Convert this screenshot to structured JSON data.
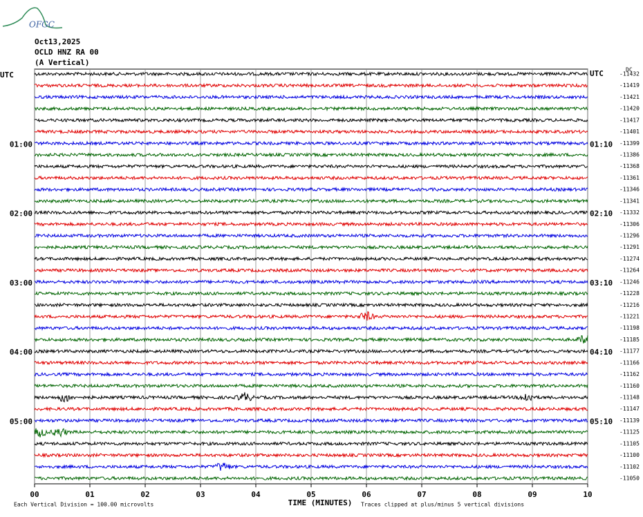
{
  "logo": "OFGC",
  "header": [
    "Oct13,2025",
    "OCLD HNZ RA 00",
    "(A Vertical)"
  ],
  "chart_data": {
    "type": "helicorder",
    "dc_label": "DC",
    "colors": [
      "#000000",
      "#e00000",
      "#0000e0",
      "#006400"
    ],
    "row_labels_left": [
      "UTC",
      null,
      null,
      null,
      null,
      null,
      "01:00",
      null,
      null,
      null,
      null,
      null,
      "02:00",
      null,
      null,
      null,
      null,
      null,
      "03:00",
      null,
      null,
      null,
      null,
      null,
      "04:00",
      null,
      null,
      null,
      null,
      null,
      "05:00",
      null,
      null,
      null,
      null,
      null
    ],
    "row_labels_right": [
      "UTC",
      null,
      null,
      null,
      null,
      null,
      "01:10",
      null,
      null,
      null,
      null,
      null,
      "02:10",
      null,
      null,
      null,
      null,
      null,
      "03:10",
      null,
      null,
      null,
      null,
      null,
      "04:10",
      null,
      null,
      null,
      null,
      null,
      "05:10",
      null,
      null,
      null,
      null,
      null
    ],
    "offsets": [
      -11432,
      -11419,
      -11421,
      -11420,
      -11417,
      -11401,
      -11399,
      -11386,
      -11368,
      -11361,
      -11346,
      -11341,
      -11332,
      -11306,
      -11296,
      -11291,
      -11274,
      -11264,
      -11246,
      -11228,
      -11216,
      -11221,
      -11198,
      -11185,
      -11177,
      -11166,
      -11162,
      -11160,
      -11148,
      -11147,
      -11139,
      -11125,
      -11105,
      -11100,
      -11102,
      -11050
    ],
    "xlim": [
      0,
      10
    ],
    "xticks": [
      {
        "value": 0,
        "label": "00"
      },
      {
        "value": 1,
        "label": "01"
      },
      {
        "value": 2,
        "label": "02"
      },
      {
        "value": 3,
        "label": "03"
      },
      {
        "value": 4,
        "label": "04"
      },
      {
        "value": 5,
        "label": "05"
      },
      {
        "value": 6,
        "label": "06"
      },
      {
        "value": 7,
        "label": "07"
      },
      {
        "value": 8,
        "label": "08"
      },
      {
        "value": 9,
        "label": "09"
      },
      {
        "value": 10,
        "label": "10"
      }
    ],
    "x_label": "TIME (MINUTES)",
    "footnote_left": "Each Vertical Division =  100.00 microvolts",
    "footnote_right": "Traces clipped at plus/minus 5 vertical divisions"
  }
}
